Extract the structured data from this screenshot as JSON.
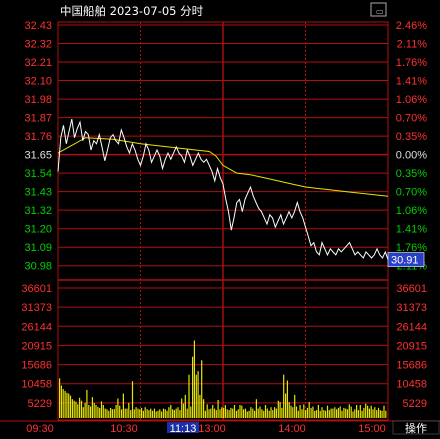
{
  "header": {
    "title": "中国船舶  2023-07-05 分时",
    "window_button": "窗口"
  },
  "colors": {
    "background": "#000000",
    "grid": "#b01010",
    "price_line": "#ffffff",
    "avg_line": "#e6e600",
    "volume": "#e6e600",
    "up": "#ff3030",
    "down": "#00d000",
    "neutral": "#e0e0e0",
    "time_highlight_bg": "#1a2fa8",
    "current_price_bg": "#2a3fc8"
  },
  "left_price_ticks": [
    "32.43",
    "32.32",
    "32.21",
    "32.10",
    "31.98",
    "31.87",
    "31.76",
    "31.65",
    "31.54",
    "31.43",
    "31.32",
    "31.20",
    "31.09",
    "30.98"
  ],
  "right_pct_ticks": [
    "2.46%",
    "2.11%",
    "1.76%",
    "1.41%",
    "1.06%",
    "0.70%",
    "0.35%",
    "0.00%",
    "0.35%",
    "0.70%",
    "1.06%",
    "1.41%",
    "1.76%",
    "2.11%"
  ],
  "volume_ticks_left": [
    "36601",
    "31373",
    "26144",
    "20915",
    "15686",
    "10458",
    "5229"
  ],
  "volume_ticks_right": [
    "36601",
    "31373",
    "26144",
    "20915",
    "15686",
    "10458",
    "5229"
  ],
  "time_ticks": [
    "09:30",
    "10:30",
    "11:13",
    "13:00",
    "14:00",
    "15:00"
  ],
  "time_highlight": "11:13",
  "current_price": "30.91",
  "action_label": "操作",
  "chart_data": {
    "type": "line",
    "title": "中国船舶  2023-07-05 分时",
    "ylim": [
      30.87,
      32.43
    ],
    "prev_close": 31.65,
    "price_series": [
      [
        0,
        31.48
      ],
      [
        2,
        31.7
      ],
      [
        4,
        31.78
      ],
      [
        6,
        31.66
      ],
      [
        8,
        31.74
      ],
      [
        10,
        31.82
      ],
      [
        12,
        31.7
      ],
      [
        14,
        31.76
      ],
      [
        16,
        31.8
      ],
      [
        18,
        31.68
      ],
      [
        20,
        31.74
      ],
      [
        22,
        31.72
      ],
      [
        24,
        31.62
      ],
      [
        26,
        31.68
      ],
      [
        28,
        31.66
      ],
      [
        30,
        31.72
      ],
      [
        32,
        31.64
      ],
      [
        34,
        31.55
      ],
      [
        36,
        31.62
      ],
      [
        38,
        31.7
      ],
      [
        40,
        31.72
      ],
      [
        42,
        31.68
      ],
      [
        44,
        31.66
      ],
      [
        46,
        31.75
      ],
      [
        48,
        31.7
      ],
      [
        50,
        31.64
      ],
      [
        52,
        31.6
      ],
      [
        54,
        31.66
      ],
      [
        56,
        31.62
      ],
      [
        58,
        31.56
      ],
      [
        60,
        31.52
      ],
      [
        62,
        31.58
      ],
      [
        64,
        31.66
      ],
      [
        66,
        31.62
      ],
      [
        68,
        31.54
      ],
      [
        70,
        31.58
      ],
      [
        72,
        31.62
      ],
      [
        74,
        31.58
      ],
      [
        76,
        31.5
      ],
      [
        78,
        31.56
      ],
      [
        80,
        31.6
      ],
      [
        82,
        31.56
      ],
      [
        84,
        31.6
      ],
      [
        86,
        31.64
      ],
      [
        88,
        31.6
      ],
      [
        90,
        31.58
      ],
      [
        92,
        31.54
      ],
      [
        94,
        31.62
      ],
      [
        96,
        31.58
      ],
      [
        98,
        31.52
      ],
      [
        100,
        31.56
      ],
      [
        102,
        31.6
      ],
      [
        104,
        31.56
      ],
      [
        106,
        31.54
      ],
      [
        108,
        31.56
      ],
      [
        110,
        31.52
      ],
      [
        112,
        31.48
      ],
      [
        114,
        31.42
      ],
      [
        116,
        31.5
      ],
      [
        118,
        31.44
      ],
      [
        120,
        31.4
      ],
      [
        122,
        31.3
      ],
      [
        124,
        31.22
      ],
      [
        126,
        31.1
      ],
      [
        128,
        31.18
      ],
      [
        130,
        31.28
      ],
      [
        132,
        31.3
      ],
      [
        134,
        31.22
      ],
      [
        136,
        31.3
      ],
      [
        138,
        31.34
      ],
      [
        140,
        31.38
      ],
      [
        142,
        31.32
      ],
      [
        144,
        31.28
      ],
      [
        146,
        31.24
      ],
      [
        148,
        31.22
      ],
      [
        150,
        31.18
      ],
      [
        152,
        31.14
      ],
      [
        154,
        31.2
      ],
      [
        156,
        31.18
      ],
      [
        158,
        31.12
      ],
      [
        160,
        31.16
      ],
      [
        162,
        31.2
      ],
      [
        164,
        31.14
      ],
      [
        166,
        31.18
      ],
      [
        168,
        31.22
      ],
      [
        170,
        31.18
      ],
      [
        172,
        31.22
      ],
      [
        174,
        31.28
      ],
      [
        176,
        31.22
      ],
      [
        178,
        31.18
      ],
      [
        180,
        31.12
      ],
      [
        182,
        31.06
      ],
      [
        184,
        31.0
      ],
      [
        186,
        31.02
      ],
      [
        188,
        30.96
      ],
      [
        190,
        30.94
      ],
      [
        192,
        31.02
      ],
      [
        194,
        30.98
      ],
      [
        196,
        30.94
      ],
      [
        198,
        30.98
      ],
      [
        200,
        30.96
      ],
      [
        202,
        30.94
      ],
      [
        204,
        30.98
      ],
      [
        206,
        30.96
      ],
      [
        208,
        30.98
      ],
      [
        210,
        31.0
      ],
      [
        212,
        31.02
      ],
      [
        214,
        30.98
      ],
      [
        216,
        30.94
      ],
      [
        218,
        30.96
      ],
      [
        220,
        30.94
      ],
      [
        222,
        30.92
      ],
      [
        224,
        30.96
      ],
      [
        226,
        30.94
      ],
      [
        228,
        30.92
      ],
      [
        230,
        30.94
      ],
      [
        232,
        30.98
      ],
      [
        234,
        30.94
      ],
      [
        236,
        30.92
      ],
      [
        238,
        30.96
      ],
      [
        240,
        30.91
      ]
    ],
    "avg_series": [
      [
        0,
        31.6
      ],
      [
        20,
        31.7
      ],
      [
        40,
        31.69
      ],
      [
        60,
        31.66
      ],
      [
        80,
        31.64
      ],
      [
        100,
        31.62
      ],
      [
        110,
        31.61
      ],
      [
        115,
        31.58
      ],
      [
        120,
        31.52
      ],
      [
        130,
        31.47
      ],
      [
        140,
        31.46
      ],
      [
        150,
        31.44
      ],
      [
        160,
        31.42
      ],
      [
        170,
        31.4
      ],
      [
        180,
        31.38
      ],
      [
        190,
        31.37
      ],
      [
        200,
        31.36
      ],
      [
        210,
        31.35
      ],
      [
        220,
        31.34
      ],
      [
        230,
        31.33
      ],
      [
        240,
        31.32
      ]
    ],
    "volume_series": [
      11000,
      9000,
      8000,
      7500,
      7000,
      6800,
      6200,
      5200,
      4800,
      4500,
      3800,
      5600,
      4800,
      3000,
      4200,
      7800,
      3600,
      3200,
      5800,
      4200,
      3600,
      3100,
      2800,
      4600,
      3600,
      2600,
      2400,
      2000,
      2800,
      2400,
      2500,
      3600,
      5400,
      3400,
      2400,
      6800,
      2600,
      2600,
      4200,
      2200,
      10200,
      2400,
      3000,
      2600,
      2400,
      2800,
      2000,
      3000,
      2400,
      2200,
      2600,
      2000,
      2600,
      1800,
      2000,
      2400,
      1800,
      2600,
      2400,
      2000,
      3000,
      3600,
      2400,
      2200,
      2600,
      3000,
      2200,
      5400,
      4000,
      6400,
      2600,
      12000,
      3200,
      17000,
      21500,
      12000,
      13000,
      6400,
      16000,
      5200,
      2000,
      3800,
      2400,
      2600,
      3600,
      2600,
      2200,
      5000,
      2400,
      3000,
      2800,
      3600,
      2400,
      2200,
      2800,
      2600,
      3600,
      2000,
      2400,
      3600,
      3400,
      2400,
      2600,
      1800,
      2000,
      3000,
      2600,
      2000,
      5200,
      2600,
      3200,
      2400,
      2000,
      3600,
      2600,
      2000,
      3000,
      2200,
      3000,
      2600,
      4800,
      4400,
      2800,
      12000,
      6800,
      10400,
      4400,
      3400,
      3000,
      6400,
      3200,
      2000,
      3600,
      2400,
      3800,
      2200,
      2800,
      4400,
      2800,
      3200,
      2000,
      2200,
      3600,
      2000,
      3000,
      2200,
      2000,
      3400,
      2200,
      2600,
      2600,
      3000,
      2400,
      2800,
      3200,
      2000,
      2800,
      2600,
      2400,
      3800,
      3200,
      1800,
      2400,
      3600,
      2200,
      3600,
      2000,
      2800,
      4000,
      3400,
      2600,
      3400,
      2400,
      3000,
      2200,
      2800,
      2200,
      2000,
      3400,
      2000
    ]
  }
}
